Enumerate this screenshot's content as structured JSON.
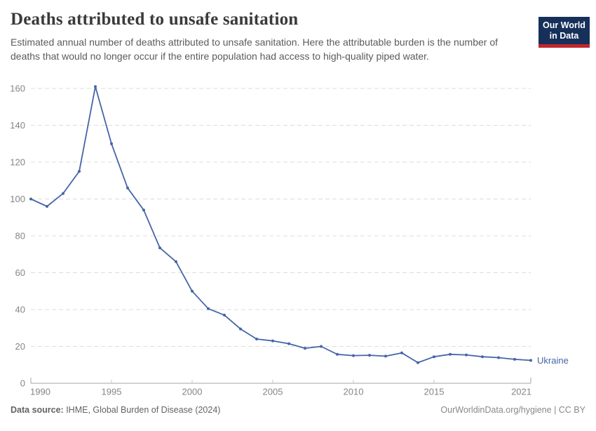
{
  "header": {
    "title": "Deaths attributed to unsafe sanitation",
    "subtitle": "Estimated annual number of deaths attributed to unsafe sanitation. Here the attributable burden is the number of deaths that would no longer occur if the entire population had access to high-quality piped water."
  },
  "logo": {
    "line1": "Our World",
    "line2": "in Data",
    "bg_color": "#163059",
    "accent_color": "#c0272d"
  },
  "chart_data": {
    "type": "line",
    "title": "Deaths attributed to unsafe sanitation",
    "xlabel": "",
    "ylabel": "",
    "x": [
      1990,
      1991,
      1992,
      1993,
      1994,
      1995,
      1996,
      1997,
      1998,
      1999,
      2000,
      2001,
      2002,
      2003,
      2004,
      2005,
      2006,
      2007,
      2008,
      2009,
      2010,
      2011,
      2012,
      2013,
      2014,
      2015,
      2016,
      2017,
      2018,
      2019,
      2020,
      2021
    ],
    "series": [
      {
        "name": "Ukraine",
        "color": "#4665a8",
        "values": [
          100,
          96,
          103,
          115,
          161,
          130,
          106,
          94,
          73.5,
          66,
          50,
          40.5,
          37,
          29.5,
          24,
          23,
          21.5,
          19,
          20,
          15.7,
          15,
          15.2,
          14.7,
          16.5,
          11.2,
          14.4,
          15.7,
          15.4,
          14.4,
          13.9,
          13,
          12.4
        ]
      }
    ],
    "ylim": [
      0,
      160
    ],
    "yticks": [
      0,
      20,
      40,
      60,
      80,
      100,
      120,
      140,
      160
    ],
    "xticks": [
      1990,
      1995,
      2000,
      2005,
      2010,
      2015,
      2021
    ],
    "grid": "dashed-horizontal",
    "legend_position": "end-of-line-label",
    "entity_label": "Ukraine"
  },
  "colors": {
    "line": "#4665a8",
    "grid": "#dddddd",
    "axis": "#a5a5a5",
    "mid_tick": "#c8c8c8",
    "tick_label": "#858585"
  },
  "footer": {
    "source_label": "Data source:",
    "source_text": " IHME, Global Burden of Disease (2024)",
    "credit": "OurWorldinData.org/hygiene | CC BY"
  }
}
